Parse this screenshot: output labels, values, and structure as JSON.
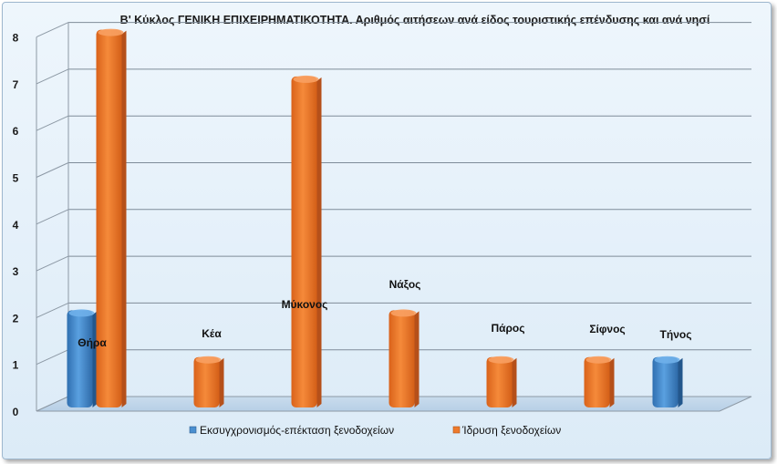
{
  "chart_data": {
    "type": "bar",
    "title": "Β' Κύκλος ΓΕΝΙΚΗ ΕΠΙΧΕΙΡΗΜΑΤΙΚΟΤΗΤΑ. Αριθμός αιτήσεων ανά είδος τουριστικής επένδυσης  και ανά νησί",
    "categories": [
      "Θήρα",
      "Κέα",
      "Μύκονος",
      "Νάξος",
      "Πάρος",
      "Σίφνος",
      "Τήνος"
    ],
    "series": [
      {
        "name": "Εκσυγχρονισμός-επέκταση ξενοδοχείων",
        "values": [
          2,
          0,
          0,
          0,
          0,
          0,
          1
        ],
        "color": "#4a8fd0"
      },
      {
        "name": "Ίδρυση ξενοδοχείων",
        "values": [
          8,
          1,
          7,
          2,
          1,
          1,
          0
        ],
        "color": "#ee7a2c"
      }
    ],
    "y_ticks": [
      "0",
      "1",
      "2",
      "3",
      "4",
      "5",
      "6",
      "7",
      "8"
    ],
    "ylim": [
      0,
      8
    ],
    "grid": true,
    "legend_position": "bottom"
  }
}
